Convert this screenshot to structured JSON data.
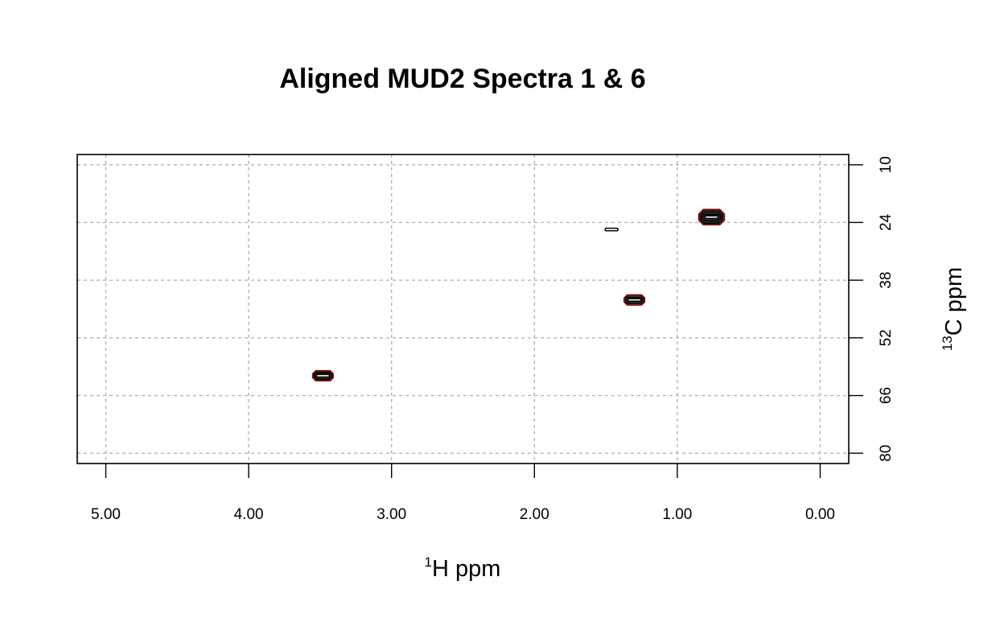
{
  "chart_data": {
    "type": "contour",
    "title": "Aligned MUD2 Spectra 1 & 6",
    "xlabel": {
      "sup": "1",
      "text": "H ppm"
    },
    "ylabel": {
      "sup": "13",
      "text": "C ppm"
    },
    "x_axis": {
      "reversed": true,
      "lim": [
        5.2,
        -0.2
      ],
      "ticks": [
        5.0,
        4.0,
        3.0,
        2.0,
        1.0,
        0.0
      ],
      "tick_labels": [
        "5.00",
        "4.00",
        "3.00",
        "2.00",
        "1.00",
        "0.00"
      ]
    },
    "y_axis": {
      "reversed": true,
      "position": "right",
      "lim": [
        7.5,
        82.5
      ],
      "ticks": [
        10,
        24,
        38,
        52,
        66,
        80
      ],
      "tick_labels": [
        "10",
        "24",
        "38",
        "52",
        "66",
        "80"
      ]
    },
    "grid": true,
    "peaks": [
      {
        "x": 0.76,
        "y": 22.7,
        "levels": 6,
        "color": "#000000"
      },
      {
        "x": 1.46,
        "y": 25.7,
        "levels": 1,
        "color": "#000000"
      },
      {
        "x": 1.3,
        "y": 42.8,
        "levels": 4,
        "color": "#000000"
      },
      {
        "x": 3.48,
        "y": 61.2,
        "levels": 4,
        "color": "#000000"
      }
    ],
    "colors": {
      "contour": "#000000",
      "contour_outer": "#8b0000",
      "grid": "#b3b3b3",
      "frame": "#000000"
    }
  }
}
